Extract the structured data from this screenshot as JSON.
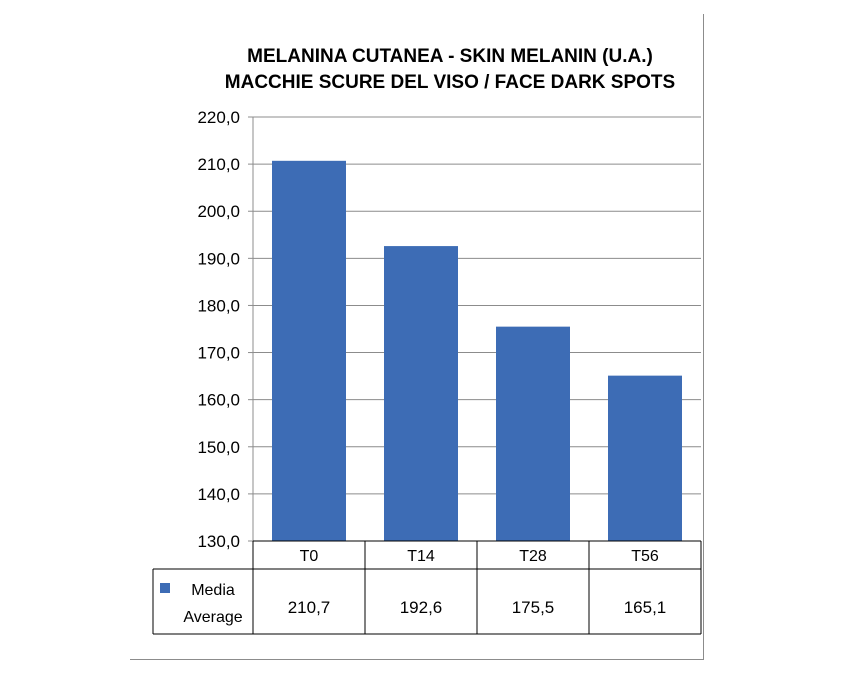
{
  "chart_data": {
    "type": "bar",
    "title": "MELANINA CUTANEA  -  SKIN MELANIN (U.A.)",
    "subtitle": "MACCHIE SCURE DEL VISO / FACE DARK SPOTS",
    "categories": [
      "T0",
      "T14",
      "T28",
      "T56"
    ],
    "series": [
      {
        "name": "Media Average",
        "name_lines": [
          "Media",
          "Average"
        ],
        "values": [
          210.7,
          192.6,
          175.5,
          165.1
        ],
        "color": "#3d6cb5"
      }
    ],
    "value_labels": [
      "210,7",
      "192,6",
      "175,5",
      "165,1"
    ],
    "ylim": [
      130,
      220
    ],
    "yticks": [
      "130,0",
      "140,0",
      "150,0",
      "160,0",
      "170,0",
      "180,0",
      "190,0",
      "200,0",
      "210,0",
      "220,0"
    ],
    "grid": true,
    "legend": "data-table"
  }
}
